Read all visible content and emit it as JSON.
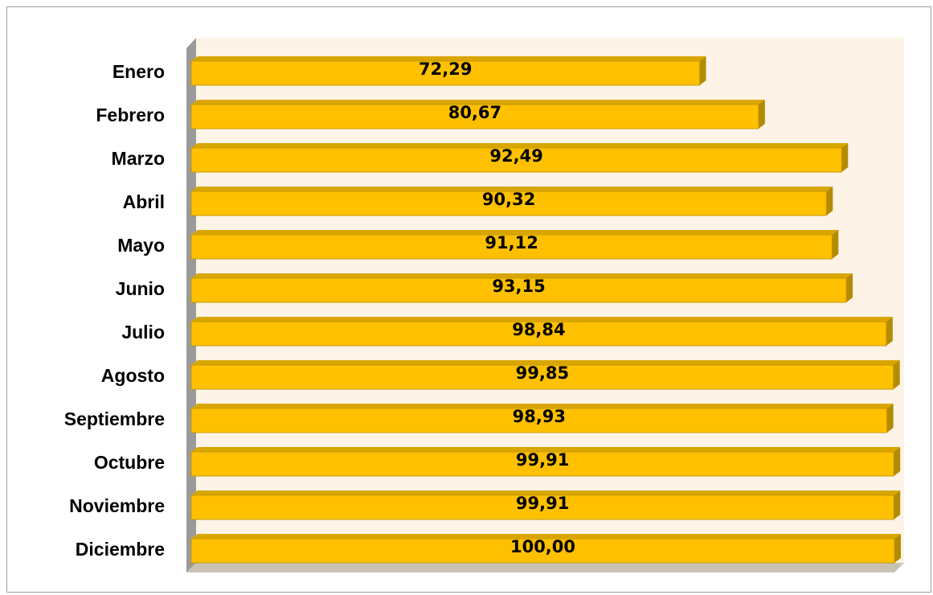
{
  "chart_data": {
    "type": "barh",
    "categories": [
      "Enero",
      "Febrero",
      "Marzo",
      "Abril",
      "Mayo",
      "Junio",
      "Julio",
      "Agosto",
      "Septiembre",
      "Octubre",
      "Noviembre",
      "Diciembre"
    ],
    "values": [
      72.29,
      80.67,
      92.49,
      90.32,
      91.12,
      93.15,
      98.84,
      99.85,
      98.93,
      99.91,
      99.91,
      100.0
    ],
    "value_labels": [
      "72,29",
      "80,67",
      "92,49",
      "90,32",
      "91,12",
      "93,15",
      "98,84",
      "99,85",
      "98,93",
      "99,91",
      "99,91",
      "100,00"
    ],
    "color": "#ffc000",
    "xlim": [
      0,
      100
    ]
  }
}
